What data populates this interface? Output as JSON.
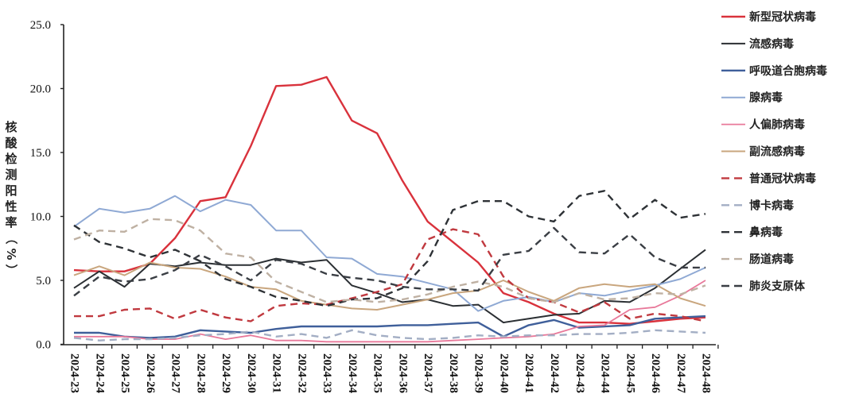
{
  "chart_data": {
    "type": "line",
    "title": "",
    "xlabel": "",
    "ylabel": "核酸检测阳性率（%）",
    "ylabel_chars": [
      "核",
      "酸",
      "检",
      "测",
      "阳",
      "性",
      "率",
      "（",
      "%",
      "）"
    ],
    "ylim": [
      0,
      25
    ],
    "yticks": [
      "0.0",
      "5.0",
      "10.0",
      "15.0",
      "20.0",
      "25.0"
    ],
    "ytick_values": [
      0,
      5,
      10,
      15,
      20,
      25
    ],
    "grid": false,
    "legend_position": "right",
    "categories": [
      "2024-23",
      "2024-24",
      "2024-25",
      "2024-26",
      "2024-27",
      "2024-28",
      "2024-29",
      "2024-30",
      "2024-31",
      "2024-32",
      "2024-33",
      "2024-34",
      "2024-35",
      "2024-36",
      "2024-37",
      "2024-38",
      "2024-39",
      "2024-40",
      "2024-41",
      "2024-42",
      "2024-43",
      "2024-44",
      "2024-45",
      "2024-46",
      "2024-47",
      "2024-48"
    ],
    "series": [
      {
        "name": "新型冠状病毒",
        "color": "#d9323c",
        "dash": false,
        "width": 2.4,
        "values": [
          5.8,
          5.7,
          5.7,
          6.3,
          8.3,
          11.2,
          11.5,
          15.5,
          20.2,
          20.3,
          20.9,
          17.5,
          16.5,
          12.8,
          9.6,
          8.0,
          6.4,
          4.0,
          3.3,
          2.4,
          1.7,
          1.7,
          1.6,
          1.8,
          2.0,
          2.1
        ]
      },
      {
        "name": "流感病毒",
        "color": "#2b2f33",
        "dash": false,
        "width": 2.0,
        "values": [
          4.4,
          5.7,
          4.5,
          6.3,
          6.1,
          6.4,
          6.2,
          6.2,
          6.7,
          6.4,
          6.6,
          4.6,
          4.0,
          3.3,
          3.5,
          3.0,
          3.1,
          1.7,
          2.0,
          2.3,
          2.4,
          3.4,
          3.3,
          4.4,
          5.9,
          7.4
        ]
      },
      {
        "name": "呼吸道合胞病毒",
        "color": "#3f5f9a",
        "dash": false,
        "width": 2.4,
        "values": [
          0.9,
          0.9,
          0.6,
          0.5,
          0.6,
          1.1,
          1.0,
          0.9,
          1.2,
          1.4,
          1.4,
          1.4,
          1.4,
          1.5,
          1.5,
          1.6,
          1.7,
          0.6,
          1.5,
          1.9,
          1.3,
          1.4,
          1.5,
          2.0,
          2.1,
          2.2
        ]
      },
      {
        "name": "腺病毒",
        "color": "#8fa9d4",
        "dash": false,
        "width": 2.0,
        "values": [
          9.2,
          10.6,
          10.3,
          10.6,
          11.6,
          10.4,
          11.3,
          10.9,
          8.9,
          8.9,
          6.8,
          6.7,
          5.5,
          5.3,
          4.8,
          4.3,
          2.6,
          3.4,
          3.7,
          3.3,
          4.0,
          3.8,
          4.2,
          4.6,
          5.1,
          6.0
        ]
      },
      {
        "name": "人偏肺病毒",
        "color": "#e8799a",
        "dash": false,
        "width": 1.8,
        "values": [
          0.6,
          0.6,
          0.6,
          0.4,
          0.4,
          0.8,
          0.4,
          0.7,
          0.3,
          0.3,
          0.2,
          0.2,
          0.2,
          0.2,
          0.2,
          0.3,
          0.4,
          0.5,
          0.6,
          0.8,
          1.4,
          1.5,
          2.7,
          2.9,
          3.8,
          5.0
        ]
      },
      {
        "name": "副流感病毒",
        "color": "#c9a67e",
        "dash": false,
        "width": 2.0,
        "values": [
          5.4,
          6.1,
          5.4,
          6.4,
          6.0,
          5.9,
          5.3,
          4.5,
          4.3,
          3.4,
          3.1,
          2.8,
          2.7,
          3.1,
          3.5,
          4.0,
          4.2,
          5.0,
          4.1,
          3.4,
          4.4,
          4.7,
          4.5,
          4.7,
          3.6,
          3.0
        ]
      },
      {
        "name": "普通冠状病毒",
        "color": "#c0393f",
        "dash": true,
        "width": 2.4,
        "values": [
          2.2,
          2.2,
          2.7,
          2.8,
          2.0,
          2.7,
          2.1,
          1.8,
          3.0,
          3.2,
          3.1,
          3.6,
          4.1,
          4.7,
          8.2,
          9.0,
          8.6,
          5.3,
          3.6,
          3.3,
          2.5,
          3.3,
          2.0,
          2.4,
          2.2,
          1.8
        ]
      },
      {
        "name": "博卡病毒",
        "color": "#a3aec4",
        "dash": true,
        "width": 2.4,
        "values": [
          0.5,
          0.3,
          0.4,
          0.4,
          0.5,
          0.7,
          0.8,
          1.0,
          0.6,
          0.8,
          0.5,
          1.1,
          0.7,
          0.5,
          0.4,
          0.5,
          0.7,
          0.6,
          0.7,
          0.7,
          0.8,
          0.8,
          0.9,
          1.1,
          1.0,
          0.9
        ]
      },
      {
        "name": "鼻病毒",
        "color": "#2e3236",
        "dash": true,
        "width": 2.4,
        "values": [
          9.3,
          8.0,
          7.5,
          6.8,
          7.4,
          6.5,
          5.1,
          4.5,
          3.7,
          3.4,
          3.0,
          3.5,
          3.6,
          4.4,
          6.5,
          10.5,
          11.2,
          11.2,
          10.0,
          9.6,
          11.6,
          12.0,
          9.8,
          11.3,
          9.9,
          10.2
        ]
      },
      {
        "name": "肠道病毒",
        "color": "#bfb1a3",
        "dash": true,
        "width": 2.4,
        "values": [
          8.2,
          8.9,
          8.8,
          9.8,
          9.7,
          8.9,
          7.1,
          6.8,
          4.9,
          4.1,
          3.3,
          3.5,
          3.3,
          3.5,
          3.9,
          4.5,
          4.9,
          4.5,
          3.6,
          3.3,
          4.0,
          3.5,
          3.6,
          4.0,
          3.9,
          4.6
        ]
      },
      {
        "name": "肺炎支原体",
        "color": "#3a3e44",
        "dash": true,
        "width": 2.4,
        "values": [
          3.8,
          5.3,
          4.9,
          5.1,
          5.8,
          7.0,
          6.1,
          5.0,
          6.6,
          6.3,
          5.5,
          5.2,
          5.0,
          4.5,
          4.3,
          4.3,
          4.2,
          7.0,
          7.3,
          9.1,
          7.2,
          7.1,
          8.6,
          6.8,
          6.0,
          6.0
        ]
      }
    ]
  }
}
